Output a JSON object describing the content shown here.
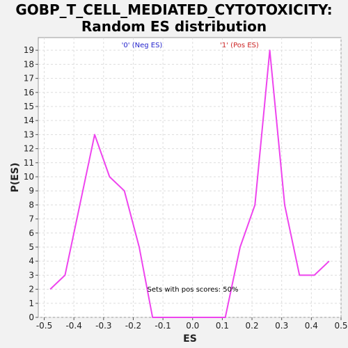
{
  "chart_data": {
    "type": "line",
    "title_line1": "GOBP_T_CELL_MEDIATED_CYTOTOXICITY:",
    "title_line2": "Random ES distribution",
    "xlabel": "ES",
    "ylabel": "P(ES)",
    "xlim": [
      -0.52,
      0.5
    ],
    "ylim": [
      0,
      19.9
    ],
    "xticks": [
      -0.5,
      -0.4,
      -0.3,
      -0.2,
      -0.1,
      0.0,
      0.1,
      0.2,
      0.3,
      0.4,
      0.5
    ],
    "xtick_labels": [
      "-0.5",
      "-0.4",
      "-0.3",
      "-0.2",
      "-0.1",
      "0.0",
      "0.1",
      "0.2",
      "0.3",
      "0.4",
      "0.5"
    ],
    "yticks": [
      0,
      1,
      2,
      3,
      4,
      5,
      6,
      7,
      8,
      9,
      10,
      11,
      12,
      13,
      14,
      15,
      16,
      17,
      18,
      19
    ],
    "ytick_labels": [
      "0",
      "1",
      "2",
      "3",
      "4",
      "5",
      "6",
      "7",
      "8",
      "9",
      "10",
      "11",
      "12",
      "13",
      "14",
      "15",
      "16",
      "17",
      "18",
      "19"
    ],
    "grid": true,
    "legend": [
      {
        "label": "'0' (Neg ES)",
        "color": "#2222cc"
      },
      {
        "label": "'1' (Pos ES)",
        "color": "#cc2222"
      }
    ],
    "annotation": "Sets with pos scores: 50%",
    "series": [
      {
        "color": "#ee44ee",
        "x": [
          -0.48,
          -0.43,
          -0.33,
          -0.28,
          -0.23,
          -0.18,
          -0.135,
          -0.09,
          -0.04,
          0.01,
          0.06,
          0.11,
          0.16,
          0.21,
          0.26,
          0.31,
          0.36,
          0.41,
          0.46
        ],
        "y": [
          2,
          3,
          13,
          10,
          9,
          5,
          0,
          0,
          0,
          0,
          0,
          0,
          5,
          8,
          19,
          8,
          3,
          3,
          4
        ]
      }
    ]
  }
}
